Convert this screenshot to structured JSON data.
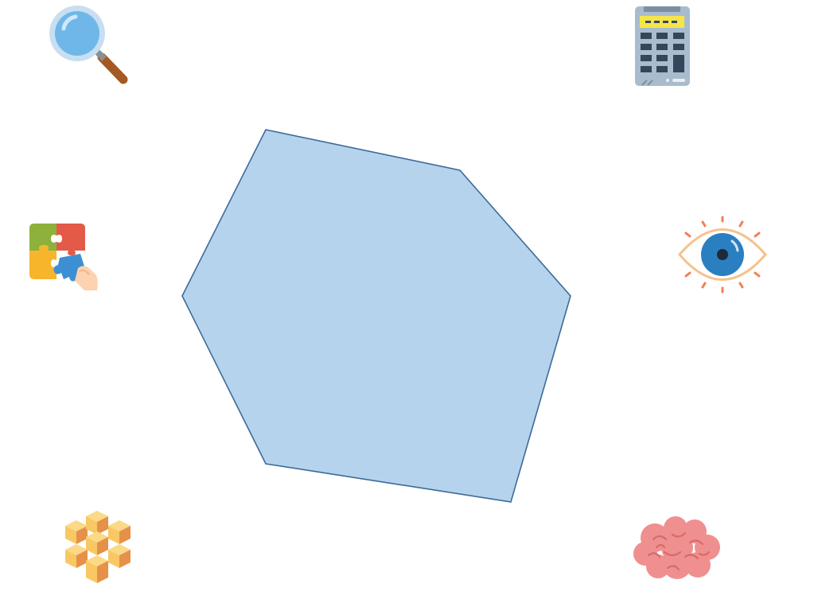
{
  "diagram": {
    "shape": "hexagon",
    "fill_color": "#b5d3ec",
    "stroke_color": "#3d6a9a"
  },
  "icons": [
    {
      "name": "magnifying-glass-icon"
    },
    {
      "name": "calculator-icon"
    },
    {
      "name": "puzzle-pieces-icon"
    },
    {
      "name": "eye-icon"
    },
    {
      "name": "cubes-icon"
    },
    {
      "name": "brain-icon"
    }
  ],
  "colors": {
    "glass_lens": "#6fb7e9",
    "glass_rim": "#c7dff0",
    "glass_handle": "#a45a22",
    "calc_body": "#a9bccd",
    "calc_screen": "#f5e54b",
    "calc_keys": "#33475c",
    "puzzle_green": "#8db13a",
    "puzzle_red": "#e35a48",
    "puzzle_yellow": "#f7b52c",
    "puzzle_blue": "#3d8fd3",
    "eye_outline": "#f5c28f",
    "eye_iris": "#2a7fc1",
    "eye_lash": "#f07f55",
    "cube_light": "#f9c862",
    "cube_dark": "#e5914a",
    "brain": "#f08f8f",
    "brain_line": "#d86a6a"
  }
}
